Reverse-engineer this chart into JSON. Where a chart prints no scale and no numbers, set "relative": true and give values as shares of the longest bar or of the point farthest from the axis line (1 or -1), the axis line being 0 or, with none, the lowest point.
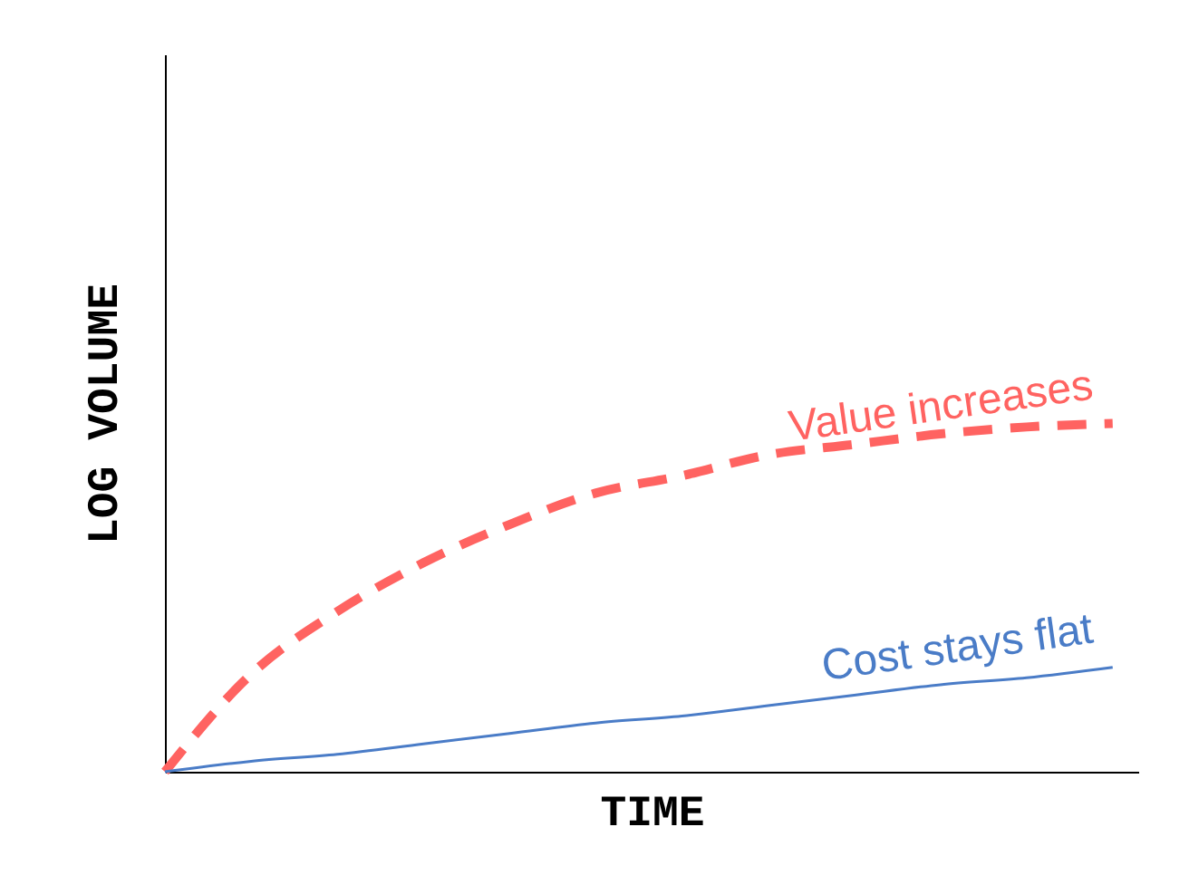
{
  "chart_data": {
    "type": "line",
    "relative": true,
    "xlabel": "TIME",
    "ylabel": "LOG VOLUME",
    "categories": [
      null,
      null,
      null,
      null,
      null,
      null,
      null,
      null,
      null,
      null,
      null,
      null
    ],
    "series": [
      {
        "name": "Value increases",
        "color": "#ff6361",
        "line_style": "dashed",
        "values": [
          0,
          0.28,
          0.46,
          0.6,
          0.71,
          0.8,
          0.85,
          0.91,
          0.94,
          0.97,
          0.99,
          1
        ]
      },
      {
        "name": "Cost stays flat",
        "color": "#4a7cc7",
        "line_style": "solid",
        "values": [
          0,
          0.03,
          0.05,
          0.08,
          0.11,
          0.14,
          0.16,
          0.19,
          0.22,
          0.25,
          0.27,
          0.3
        ]
      }
    ],
    "grid": false,
    "legend": false,
    "marker": "none"
  }
}
